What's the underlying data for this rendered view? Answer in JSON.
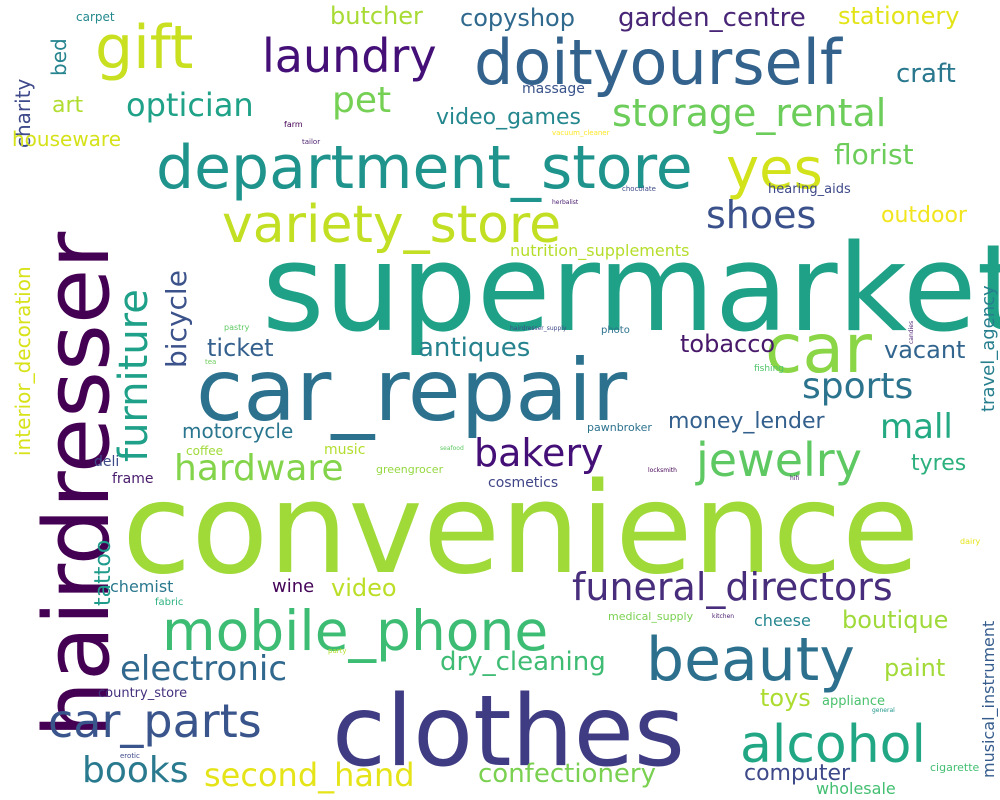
{
  "words": [
    {
      "text": "convenience",
      "color": "#a0da39"
    },
    {
      "text": "supermarket",
      "color": "#1fa187"
    },
    {
      "text": "car_repair",
      "color": "#2c728e"
    },
    {
      "text": "clothes",
      "color": "#3f3c83"
    },
    {
      "text": "hairdresser",
      "color": "#440154"
    },
    {
      "text": "car",
      "color": "#8bd646"
    },
    {
      "text": "doityourself",
      "color": "#33638d"
    },
    {
      "text": "department_store",
      "color": "#1f948c"
    },
    {
      "text": "beauty",
      "color": "#2d708e"
    },
    {
      "text": "gift",
      "color": "#c8e020"
    },
    {
      "text": "mobile_phone",
      "color": "#3dbc74"
    },
    {
      "text": "variety_store",
      "color": "#c2df23"
    },
    {
      "text": "furniture",
      "color": "#1fa088"
    },
    {
      "text": "laundry",
      "color": "#440f76"
    },
    {
      "text": "alcohol",
      "color": "#22a785"
    },
    {
      "text": "funeral_directors",
      "color": "#472d7b"
    },
    {
      "text": "car_parts",
      "color": "#39558c"
    },
    {
      "text": "jewelry",
      "color": "#5ec962"
    },
    {
      "text": "yes",
      "color": "#d2e21b"
    },
    {
      "text": "storage_rental",
      "color": "#6ccd5a"
    },
    {
      "text": "hardware",
      "color": "#84d44b"
    },
    {
      "text": "electronic",
      "color": "#31688e"
    },
    {
      "text": "bakery",
      "color": "#440f76"
    },
    {
      "text": "shoes",
      "color": "#3b518b"
    },
    {
      "text": "books",
      "color": "#297a8e"
    },
    {
      "text": "second_hand",
      "color": "#e5e419"
    },
    {
      "text": "sports",
      "color": "#2c738e"
    },
    {
      "text": "optician",
      "color": "#1fa287"
    },
    {
      "text": "bicycle",
      "color": "#3b528b"
    },
    {
      "text": "mall",
      "color": "#24aa83"
    },
    {
      "text": "pet",
      "color": "#75d054"
    },
    {
      "text": "confectionery",
      "color": "#7ad151"
    },
    {
      "text": "dry_cleaning",
      "color": "#3fbc73"
    },
    {
      "text": "florist",
      "color": "#6ccd5a"
    },
    {
      "text": "antiques",
      "color": "#26828e"
    },
    {
      "text": "garden_centre",
      "color": "#482576"
    },
    {
      "text": "copyshop",
      "color": "#30698e"
    },
    {
      "text": "butcher",
      "color": "#a8db34"
    },
    {
      "text": "stationery",
      "color": "#e2e418"
    },
    {
      "text": "craft",
      "color": "#2a788e"
    },
    {
      "text": "tobacco",
      "color": "#48186a"
    },
    {
      "text": "ticket",
      "color": "#34618d"
    },
    {
      "text": "vacant",
      "color": "#32658e"
    },
    {
      "text": "video_games",
      "color": "#24878e"
    },
    {
      "text": "outdoor",
      "color": "#f1e51d"
    },
    {
      "text": "computer",
      "color": "#3e4989"
    },
    {
      "text": "video",
      "color": "#bbdf27"
    },
    {
      "text": "boutique",
      "color": "#9fda3a"
    },
    {
      "text": "toys",
      "color": "#addc30"
    },
    {
      "text": "money_lender",
      "color": "#34608d"
    },
    {
      "text": "paint",
      "color": "#a2da37"
    },
    {
      "text": "tyres",
      "color": "#2cb17e"
    },
    {
      "text": "motorcycle",
      "color": "#2a768e"
    },
    {
      "text": "interior_decoration",
      "color": "#d8e219"
    },
    {
      "text": "travel_agency",
      "color": "#277f8e"
    },
    {
      "text": "musical_instrument",
      "color": "#365c8d"
    },
    {
      "text": "charity",
      "color": "#3e4a89"
    },
    {
      "text": "art",
      "color": "#b0dd2f"
    },
    {
      "text": "houseware",
      "color": "#d5e21a"
    },
    {
      "text": "bed",
      "color": "#25848e"
    },
    {
      "text": "tattoo",
      "color": "#1e9b8a"
    },
    {
      "text": "nutrition_supplements",
      "color": "#b5de2b"
    },
    {
      "text": "chemist",
      "color": "#2a788e"
    },
    {
      "text": "wine",
      "color": "#450559"
    },
    {
      "text": "hearing_aids",
      "color": "#3e4989"
    },
    {
      "text": "massage",
      "color": "#3a538b"
    },
    {
      "text": "wholesale",
      "color": "#43bf71"
    },
    {
      "text": "cheese",
      "color": "#24868e"
    },
    {
      "text": "cosmetics",
      "color": "#404588"
    },
    {
      "text": "music",
      "color": "#b2dd2d"
    },
    {
      "text": "appliance",
      "color": "#4ac16d"
    },
    {
      "text": "coffee",
      "color": "#a0da39"
    },
    {
      "text": "deli",
      "color": "#3e4989"
    },
    {
      "text": "frame",
      "color": "#481b6d"
    },
    {
      "text": "country_store",
      "color": "#46307e"
    },
    {
      "text": "greengrocer",
      "color": "#95d840"
    },
    {
      "text": "carpet",
      "color": "#23898e"
    },
    {
      "text": "pawnbroker",
      "color": "#2c728e"
    },
    {
      "text": "cigarette",
      "color": "#42be71"
    },
    {
      "text": "fabric",
      "color": "#2cb17e"
    },
    {
      "text": "medical_supply",
      "color": "#7ad151"
    },
    {
      "text": "photo",
      "color": "#2c728e"
    },
    {
      "text": "fishing",
      "color": "#4ec36b"
    },
    {
      "text": "vacuum_cleaner",
      "color": "#fde725"
    },
    {
      "text": "pastry",
      "color": "#5ec962"
    },
    {
      "text": "chocolate",
      "color": "#3e4989"
    },
    {
      "text": "tailor",
      "color": "#481b6d"
    },
    {
      "text": "farm",
      "color": "#440154"
    },
    {
      "text": "herbalist",
      "color": "#481b6d"
    },
    {
      "text": "hairdresser_supply",
      "color": "#3e4989"
    },
    {
      "text": "candies",
      "color": "#481b6d"
    },
    {
      "text": "tea",
      "color": "#6ccd5a"
    },
    {
      "text": "seafood",
      "color": "#5ec962"
    },
    {
      "text": "locksmith",
      "color": "#440154"
    },
    {
      "text": "hifi",
      "color": "#481b6d"
    },
    {
      "text": "kitchen",
      "color": "#481b6d"
    },
    {
      "text": "general",
      "color": "#1f968b"
    },
    {
      "text": "party",
      "color": "#b5de2b"
    },
    {
      "text": "erotic",
      "color": "#3e4989"
    },
    {
      "text": "dairy",
      "color": "#e5e419"
    }
  ]
}
